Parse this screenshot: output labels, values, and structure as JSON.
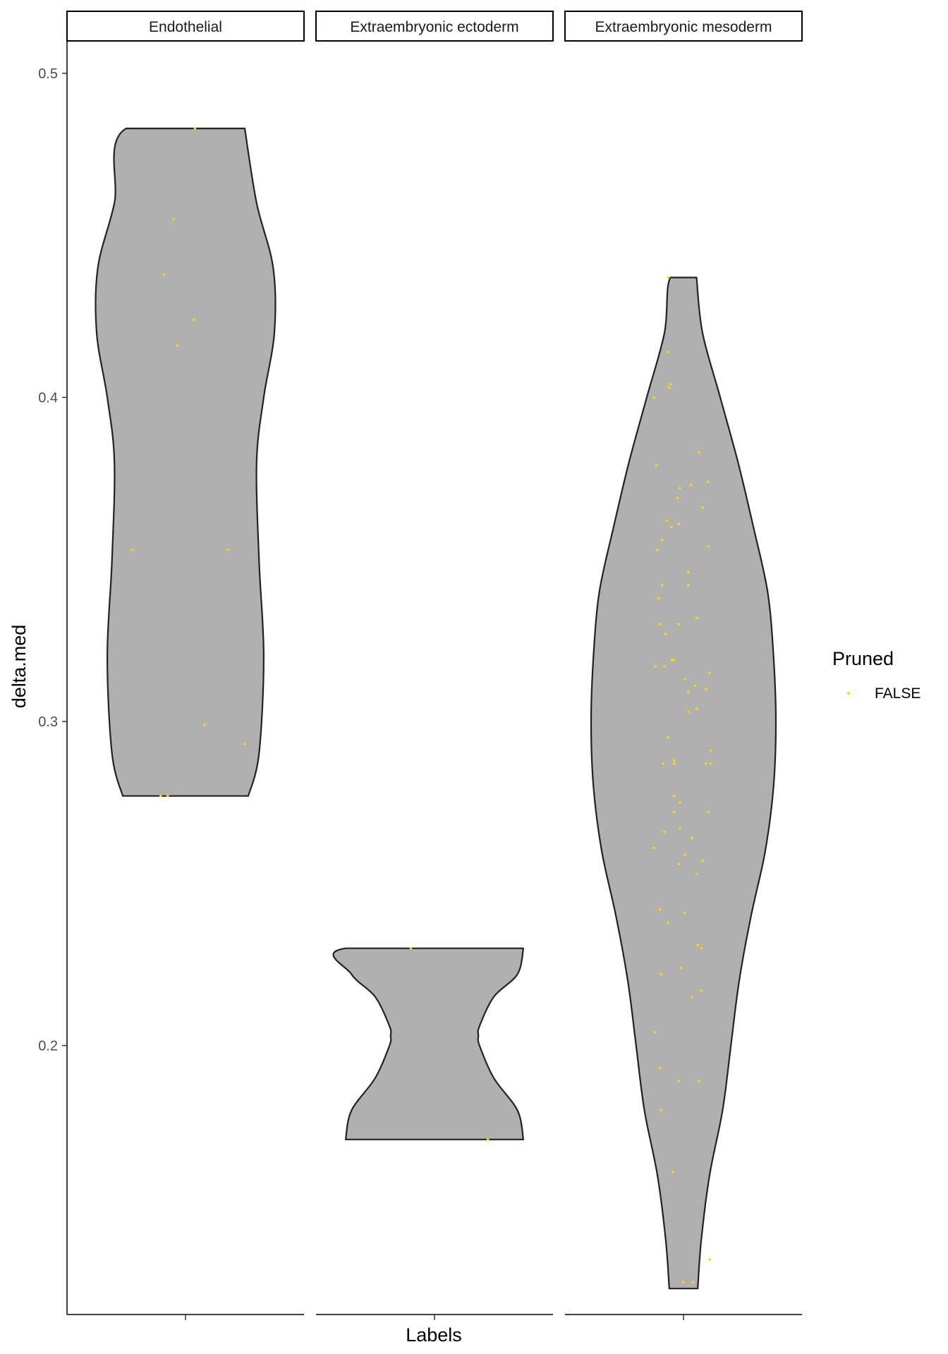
{
  "chart_data": {
    "type": "violin",
    "xlabel": "Labels",
    "ylabel": "delta.med",
    "ylim": [
      0.117,
      0.51
    ],
    "yticks": [
      0.2,
      0.3,
      0.4,
      0.5
    ],
    "ytick_labels": [
      "0.2",
      "0.3",
      "0.4",
      "0.5"
    ],
    "grid": false,
    "legend": {
      "title": "Pruned",
      "position": "right",
      "entries": [
        {
          "label": "FALSE",
          "color": "#FFD700"
        }
      ]
    },
    "colors": {
      "violin_fill": "#B0B0B0",
      "violin_stroke": "#222222",
      "point": "#FFD700"
    },
    "panels": [
      {
        "label": "Endothelial",
        "violin": {
          "y": [
            0.277,
            0.29,
            0.32,
            0.35,
            0.38,
            0.4,
            0.42,
            0.44,
            0.46,
            0.483
          ],
          "w": [
            0.53,
            0.62,
            0.66,
            0.62,
            0.6,
            0.66,
            0.75,
            0.74,
            0.6,
            0.5
          ]
        },
        "points": [
          [
            -0.21,
            0.277
          ],
          [
            0.08,
            0.483
          ],
          [
            -0.1,
            0.455
          ],
          [
            -0.18,
            0.438
          ],
          [
            0.07,
            0.424
          ],
          [
            -0.07,
            0.416
          ],
          [
            -0.45,
            0.353
          ],
          [
            0.36,
            0.353
          ],
          [
            0.16,
            0.299
          ],
          [
            0.5,
            0.293
          ],
          [
            -0.15,
            0.277
          ]
        ]
      },
      {
        "label": "Extraembryonic ectoderm",
        "violin": {
          "y": [
            0.171,
            0.18,
            0.19,
            0.2,
            0.203,
            0.206,
            0.215,
            0.222,
            0.23
          ],
          "w": [
            0.75,
            0.7,
            0.5,
            0.38,
            0.37,
            0.38,
            0.5,
            0.7,
            0.75
          ]
        },
        "points": [
          [
            -0.2,
            0.23
          ],
          [
            0.45,
            0.171
          ]
        ]
      },
      {
        "label": "Extraembryonic mesoderm",
        "violin": {
          "y": [
            0.125,
            0.14,
            0.16,
            0.18,
            0.2,
            0.22,
            0.24,
            0.26,
            0.28,
            0.3,
            0.32,
            0.34,
            0.36,
            0.38,
            0.4,
            0.42,
            0.437
          ],
          "w": [
            0.12,
            0.15,
            0.22,
            0.33,
            0.4,
            0.47,
            0.57,
            0.69,
            0.76,
            0.78,
            0.76,
            0.71,
            0.59,
            0.46,
            0.31,
            0.16,
            0.11
          ]
        },
        "points": [
          [
            -0.13,
            0.437
          ],
          [
            -0.13,
            0.414
          ],
          [
            -0.11,
            0.404
          ],
          [
            -0.12,
            0.403
          ],
          [
            -0.25,
            0.4
          ],
          [
            0.13,
            0.383
          ],
          [
            -0.23,
            0.379
          ],
          [
            0.06,
            0.373
          ],
          [
            -0.03,
            0.372
          ],
          [
            0.21,
            0.374
          ],
          [
            -0.05,
            0.369
          ],
          [
            0.16,
            0.366
          ],
          [
            -0.14,
            0.362
          ],
          [
            -0.04,
            0.361
          ],
          [
            -0.1,
            0.36
          ],
          [
            -0.18,
            0.356
          ],
          [
            0.21,
            0.354
          ],
          [
            -0.22,
            0.353
          ],
          [
            0.04,
            0.346
          ],
          [
            -0.18,
            0.342
          ],
          [
            0.04,
            0.342
          ],
          [
            -0.21,
            0.338
          ],
          [
            0.11,
            0.332
          ],
          [
            -0.04,
            0.33
          ],
          [
            -0.2,
            0.33
          ],
          [
            -0.15,
            0.327
          ],
          [
            -0.1,
            0.319
          ],
          [
            -0.08,
            0.319
          ],
          [
            -0.24,
            0.317
          ],
          [
            -0.16,
            0.317
          ],
          [
            0.22,
            0.315
          ],
          [
            0.01,
            0.313
          ],
          [
            0.04,
            0.309
          ],
          [
            0.1,
            0.311
          ],
          [
            0.19,
            0.31
          ],
          [
            0.11,
            0.304
          ],
          [
            0.04,
            0.303
          ],
          [
            -0.13,
            0.295
          ],
          [
            -0.17,
            0.287
          ],
          [
            -0.08,
            0.288
          ],
          [
            -0.08,
            0.287
          ],
          [
            0.19,
            0.287
          ],
          [
            0.23,
            0.287
          ],
          [
            0.23,
            0.291
          ],
          [
            -0.08,
            0.277
          ],
          [
            -0.03,
            0.275
          ],
          [
            -0.08,
            0.272
          ],
          [
            0.21,
            0.272
          ],
          [
            -0.03,
            0.267
          ],
          [
            -0.16,
            0.266
          ],
          [
            0.07,
            0.264
          ],
          [
            -0.25,
            0.261
          ],
          [
            0.01,
            0.259
          ],
          [
            0.16,
            0.257
          ],
          [
            -0.04,
            0.256
          ],
          [
            0.11,
            0.253
          ],
          [
            -0.2,
            0.242
          ],
          [
            0.01,
            0.241
          ],
          [
            -0.13,
            0.238
          ],
          [
            0.12,
            0.231
          ],
          [
            0.15,
            0.23
          ],
          [
            -0.02,
            0.224
          ],
          [
            -0.19,
            0.222
          ],
          [
            0.15,
            0.217
          ],
          [
            0.07,
            0.215
          ],
          [
            -0.24,
            0.204
          ],
          [
            -0.2,
            0.193
          ],
          [
            -0.04,
            0.189
          ],
          [
            0.13,
            0.189
          ],
          [
            -0.19,
            0.18
          ],
          [
            -0.09,
            0.161
          ],
          [
            0.22,
            0.134
          ],
          [
            0.0,
            0.127
          ],
          [
            0.08,
            0.127
          ]
        ]
      }
    ]
  }
}
